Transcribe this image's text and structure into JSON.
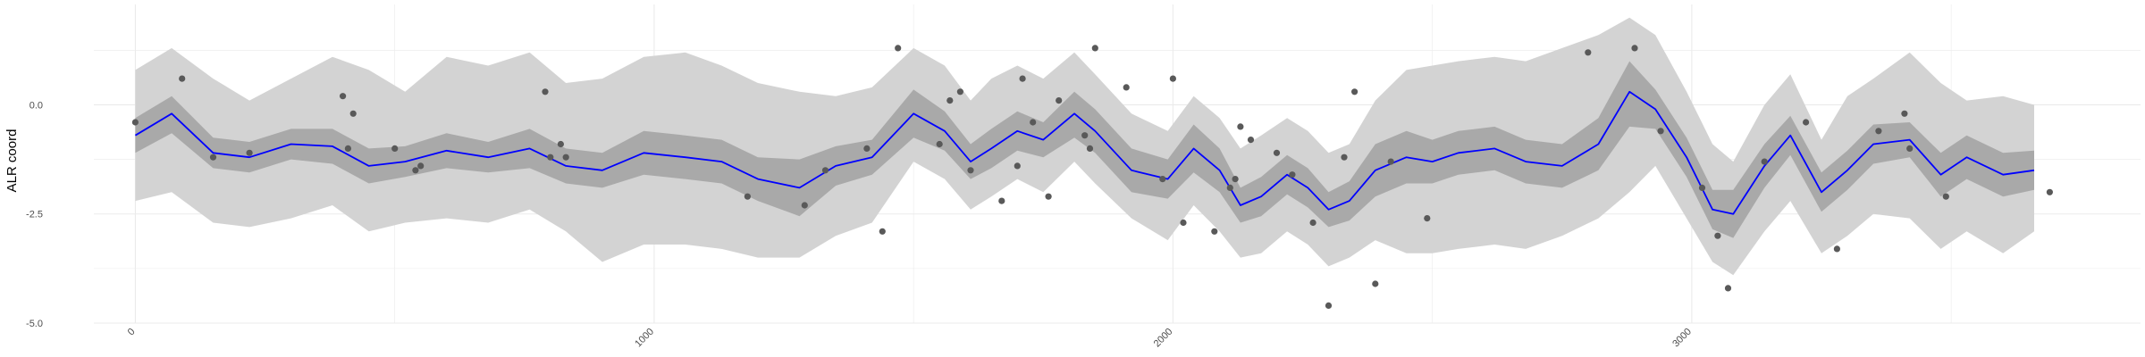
{
  "chart_data": {
    "type": "line",
    "title": "",
    "xlabel": "",
    "ylabel": "ALR coord",
    "xlim": [
      -80,
      3865
    ],
    "ylim": [
      -5.0,
      2.3
    ],
    "grid": true,
    "legend": "none",
    "x_ticks": [
      0,
      1000,
      2000,
      3000
    ],
    "x_tick_labels": [
      "0",
      "1000",
      "2000",
      "3000"
    ],
    "y_ticks": [
      0.0,
      -2.5,
      -5.0
    ],
    "y_tick_labels": [
      "0.0",
      "-2.5",
      "-5.0"
    ],
    "colors": {
      "line": "#0000ff",
      "band_outer": "#d3d3d3",
      "band_inner": "#a9a9a9",
      "points": "#595959",
      "grid": "#ebebeb"
    },
    "series": [
      {
        "type": "line",
        "x": [
          0,
          70,
          150,
          220,
          300,
          380,
          450,
          520,
          600,
          680,
          760,
          830,
          900,
          980,
          1060,
          1130,
          1200,
          1280,
          1350,
          1420,
          1500,
          1560,
          1610,
          1650,
          1700,
          1750,
          1810,
          1850,
          1920,
          1990,
          2040,
          2090,
          2130,
          2170,
          2220,
          2260,
          2300,
          2340,
          2390,
          2450,
          2500,
          2550,
          2620,
          2680,
          2750,
          2820,
          2880,
          2930,
          2990,
          3040,
          3080,
          3140,
          3190,
          3250,
          3300,
          3350,
          3420,
          3480,
          3530,
          3600,
          3660
        ],
        "y": [
          -0.7,
          -0.2,
          -1.1,
          -1.2,
          -0.9,
          -0.95,
          -1.4,
          -1.3,
          -1.05,
          -1.2,
          -1.0,
          -1.4,
          -1.5,
          -1.1,
          -1.2,
          -1.3,
          -1.7,
          -1.9,
          -1.4,
          -1.2,
          -0.2,
          -0.6,
          -1.3,
          -1.0,
          -0.6,
          -0.8,
          -0.2,
          -0.6,
          -1.5,
          -1.7,
          -1.0,
          -1.5,
          -2.3,
          -2.1,
          -1.6,
          -1.9,
          -2.4,
          -2.2,
          -1.5,
          -1.2,
          -1.3,
          -1.1,
          -1.0,
          -1.3,
          -1.4,
          -0.9,
          0.3,
          -0.1,
          -1.2,
          -2.4,
          -2.5,
          -1.4,
          -0.7,
          -2.0,
          -1.5,
          -0.9,
          -0.8,
          -1.6,
          -1.2,
          -1.6,
          -1.5
        ]
      },
      {
        "type": "band",
        "name": "",
        "x": [
          0,
          70,
          150,
          220,
          300,
          380,
          450,
          520,
          600,
          680,
          760,
          830,
          900,
          980,
          1060,
          1130,
          1200,
          1280,
          1350,
          1420,
          1500,
          1560,
          1610,
          1650,
          1700,
          1750,
          1810,
          1850,
          1920,
          1990,
          2040,
          2090,
          2130,
          2170,
          2220,
          2260,
          2300,
          2340,
          2390,
          2450,
          2500,
          2550,
          2620,
          2680,
          2750,
          2820,
          2880,
          2930,
          2990,
          3040,
          3080,
          3140,
          3190,
          3250,
          3300,
          3350,
          3420,
          3480,
          3530,
          3600,
          3660
        ],
        "lower": [
          -1.1,
          -0.65,
          -1.45,
          -1.55,
          -1.25,
          -1.35,
          -1.8,
          -1.65,
          -1.45,
          -1.55,
          -1.45,
          -1.8,
          -1.9,
          -1.6,
          -1.7,
          -1.8,
          -2.2,
          -2.55,
          -1.85,
          -1.6,
          -0.75,
          -1.05,
          -1.7,
          -1.45,
          -1.05,
          -1.2,
          -0.75,
          -1.1,
          -2.0,
          -2.15,
          -1.55,
          -2.0,
          -2.7,
          -2.55,
          -2.05,
          -2.35,
          -2.8,
          -2.65,
          -2.1,
          -1.8,
          -1.8,
          -1.6,
          -1.5,
          -1.8,
          -1.9,
          -1.5,
          -0.5,
          -0.55,
          -1.65,
          -2.85,
          -3.05,
          -1.9,
          -1.15,
          -2.45,
          -1.95,
          -1.35,
          -1.2,
          -2.1,
          -1.7,
          -2.1,
          -1.95
        ],
        "upper": [
          -0.3,
          0.2,
          -0.75,
          -0.85,
          -0.55,
          -0.55,
          -1.0,
          -0.95,
          -0.65,
          -0.85,
          -0.55,
          -1.0,
          -1.1,
          -0.6,
          -0.7,
          -0.8,
          -1.2,
          -1.25,
          -0.95,
          -0.8,
          0.35,
          -0.15,
          -0.9,
          -0.55,
          -0.15,
          -0.4,
          0.3,
          -0.1,
          -1.0,
          -1.25,
          -0.45,
          -1.0,
          -1.9,
          -1.65,
          -1.15,
          -1.45,
          -2.0,
          -1.75,
          -0.9,
          -0.6,
          -0.8,
          -0.6,
          -0.5,
          -0.8,
          -0.9,
          -0.3,
          1.0,
          0.35,
          -0.75,
          -1.95,
          -1.95,
          -0.9,
          -0.25,
          -1.55,
          -1.05,
          -0.45,
          -0.4,
          -1.1,
          -0.7,
          -1.1,
          -1.05
        ]
      },
      {
        "type": "band",
        "name": "",
        "x": [
          0,
          70,
          150,
          220,
          300,
          380,
          450,
          520,
          600,
          680,
          760,
          830,
          900,
          980,
          1060,
          1130,
          1200,
          1280,
          1350,
          1420,
          1500,
          1560,
          1610,
          1650,
          1700,
          1750,
          1810,
          1850,
          1920,
          1990,
          2040,
          2090,
          2130,
          2170,
          2220,
          2260,
          2300,
          2340,
          2390,
          2450,
          2500,
          2550,
          2620,
          2680,
          2750,
          2820,
          2880,
          2930,
          2990,
          3040,
          3080,
          3140,
          3190,
          3250,
          3300,
          3350,
          3420,
          3480,
          3530,
          3600,
          3660
        ],
        "lower": [
          -2.2,
          -2.0,
          -2.7,
          -2.8,
          -2.6,
          -2.3,
          -2.9,
          -2.7,
          -2.6,
          -2.7,
          -2.4,
          -2.9,
          -3.6,
          -3.2,
          -3.2,
          -3.3,
          -3.5,
          -3.5,
          -3.0,
          -2.7,
          -1.3,
          -1.7,
          -2.4,
          -2.1,
          -1.7,
          -2.0,
          -1.3,
          -1.8,
          -2.6,
          -3.1,
          -2.3,
          -2.9,
          -3.5,
          -3.4,
          -2.9,
          -3.2,
          -3.7,
          -3.5,
          -3.1,
          -3.4,
          -3.4,
          -3.3,
          -3.2,
          -3.3,
          -3.0,
          -2.6,
          -2.0,
          -1.4,
          -2.6,
          -3.6,
          -3.9,
          -2.9,
          -2.2,
          -3.4,
          -3.0,
          -2.5,
          -2.6,
          -3.3,
          -2.9,
          -3.4,
          -2.9
        ],
        "upper": [
          0.8,
          1.3,
          0.6,
          0.1,
          0.6,
          1.1,
          0.8,
          0.3,
          1.1,
          0.9,
          1.2,
          0.5,
          0.6,
          1.1,
          1.2,
          0.9,
          0.5,
          0.3,
          0.2,
          0.4,
          1.3,
          0.9,
          0.1,
          0.6,
          0.9,
          0.6,
          1.2,
          0.7,
          -0.2,
          -0.6,
          0.2,
          -0.3,
          -1.0,
          -0.7,
          -0.3,
          -0.6,
          -1.1,
          -0.9,
          0.1,
          0.8,
          0.9,
          1.0,
          1.1,
          1.0,
          1.3,
          1.6,
          2.0,
          1.6,
          0.3,
          -0.9,
          -1.3,
          0.0,
          0.7,
          -0.8,
          0.2,
          0.6,
          1.2,
          0.5,
          0.1,
          0.2,
          0.0
        ]
      },
      {
        "type": "scatter",
        "x": [
          0,
          90,
          150,
          220,
          400,
          410,
          420,
          500,
          540,
          550,
          790,
          800,
          820,
          830,
          1180,
          1290,
          1330,
          1410,
          1440,
          1470,
          1550,
          1570,
          1590,
          1610,
          1670,
          1700,
          1710,
          1730,
          1760,
          1780,
          1830,
          1840,
          1850,
          1910,
          1980,
          2000,
          2020,
          2080,
          2110,
          2120,
          2130,
          2150,
          2200,
          2230,
          2270,
          2300,
          2330,
          2350,
          2390,
          2420,
          2490,
          2800,
          2890,
          2940,
          3020,
          3050,
          3070,
          3140,
          3220,
          3280,
          3360,
          3410,
          3420,
          3490,
          3690
        ],
        "y": [
          -0.4,
          0.6,
          -1.2,
          -1.1,
          0.2,
          -1.0,
          -0.2,
          -1.0,
          -1.5,
          -1.4,
          0.3,
          -1.2,
          -0.9,
          -1.2,
          -2.1,
          -2.3,
          -1.5,
          -1.0,
          -2.9,
          1.3,
          -0.9,
          0.1,
          0.3,
          -1.5,
          -2.2,
          -1.4,
          0.6,
          -0.4,
          -2.1,
          0.1,
          -0.7,
          -1.0,
          1.3,
          0.4,
          -1.7,
          0.6,
          -2.7,
          -2.9,
          -1.9,
          -1.7,
          -0.5,
          -0.8,
          -1.1,
          -1.6,
          -2.7,
          -4.6,
          -1.2,
          0.3,
          -4.1,
          -1.3,
          -2.6,
          1.2,
          1.3,
          -0.6,
          -1.9,
          -3.0,
          -4.2,
          -1.3,
          -0.4,
          -3.3,
          -0.6,
          -0.2,
          -1.0,
          -2.1,
          -2.0
        ]
      }
    ]
  }
}
